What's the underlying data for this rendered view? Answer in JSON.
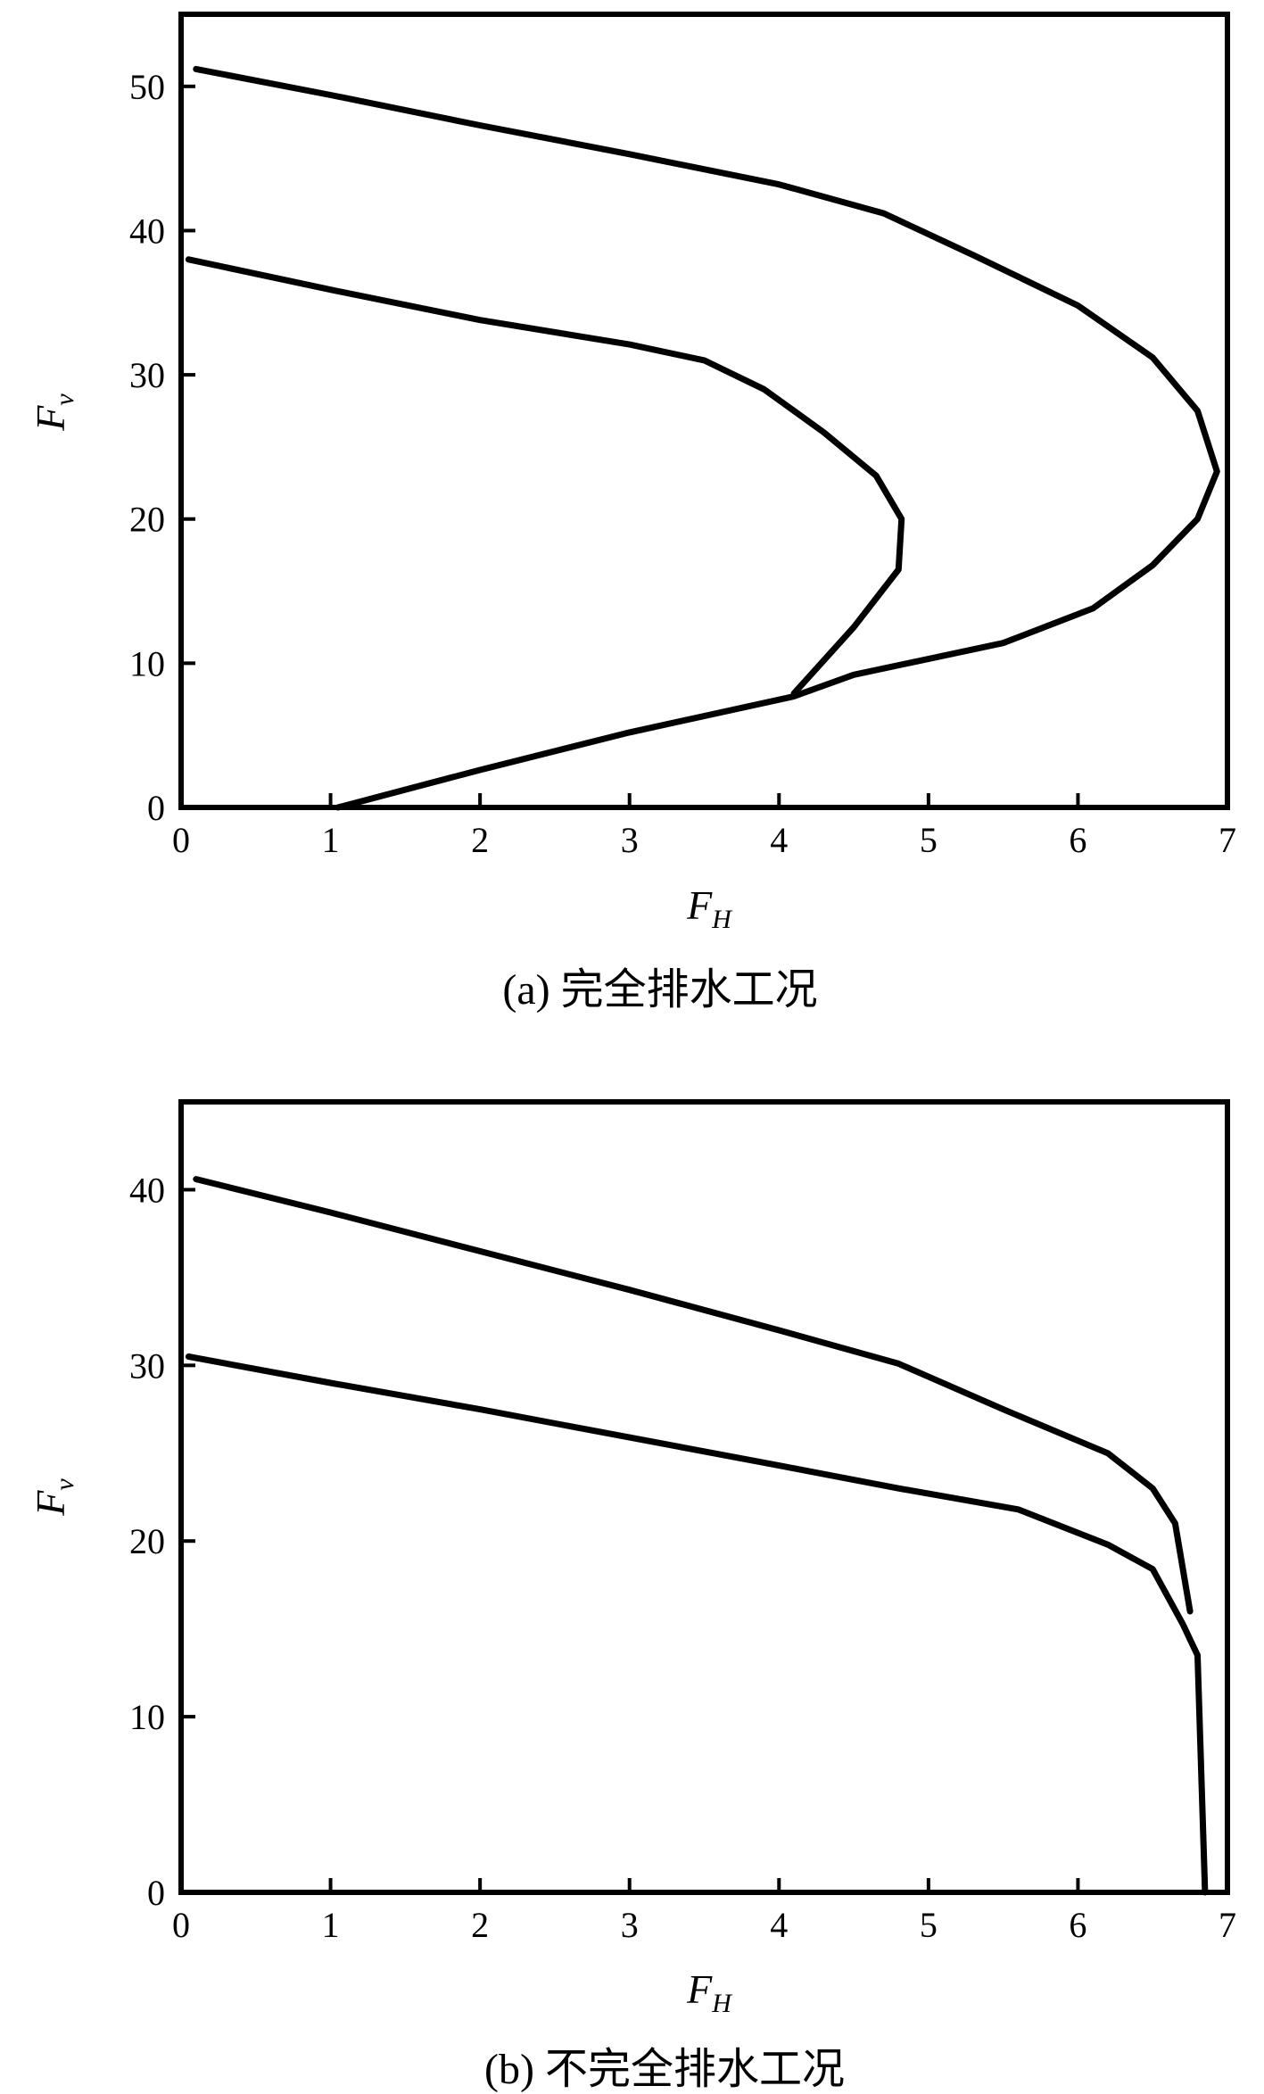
{
  "chart_data": [
    {
      "type": "line",
      "panel": "a",
      "caption": "(a) 完全排水工况",
      "xlabel_main": "F",
      "xlabel_sub": "H",
      "ylabel_main": "F",
      "ylabel_sub": "v",
      "xlim": [
        0,
        7
      ],
      "ylim": [
        0,
        55
      ],
      "xticks": [
        "0",
        "1",
        "2",
        "3",
        "4",
        "5",
        "6",
        "7"
      ],
      "yticks": [
        "0",
        "10",
        "20",
        "30",
        "40",
        "50"
      ],
      "ytick_values": [
        0,
        10,
        20,
        30,
        40,
        50
      ],
      "series": [
        {
          "points": [
            [
              0.1,
              51.2
            ],
            [
              1,
              49.4
            ],
            [
              2,
              47.3
            ],
            [
              3,
              45.3
            ],
            [
              4,
              43.2
            ],
            [
              4.7,
              41.2
            ],
            [
              5.3,
              38.3
            ],
            [
              6,
              34.8
            ],
            [
              6.5,
              31.2
            ],
            [
              6.8,
              27.5
            ],
            [
              6.93,
              23.3
            ],
            [
              6.8,
              20
            ],
            [
              6.5,
              16.8
            ],
            [
              6.1,
              13.8
            ],
            [
              5.5,
              11.4
            ],
            [
              4.5,
              9.2
            ],
            [
              4.1,
              7.7
            ],
            [
              3,
              5.2
            ],
            [
              2,
              2.6
            ],
            [
              1.05,
              0
            ]
          ]
        },
        {
          "points": [
            [
              0.05,
              38
            ],
            [
              1,
              35.9
            ],
            [
              2,
              33.8
            ],
            [
              3,
              32.1
            ],
            [
              3.5,
              31
            ],
            [
              3.9,
              29
            ],
            [
              4.3,
              26
            ],
            [
              4.65,
              23
            ],
            [
              4.82,
              20
            ],
            [
              4.8,
              16.5
            ],
            [
              4.5,
              12.5
            ],
            [
              4.1,
              7.9
            ]
          ]
        }
      ]
    },
    {
      "type": "line",
      "panel": "b",
      "caption": "(b) 不完全排水工况",
      "xlabel_main": "F",
      "xlabel_sub": "H",
      "ylabel_main": "F",
      "ylabel_sub": "v",
      "xlim": [
        0,
        7
      ],
      "ylim": [
        0,
        45
      ],
      "xticks": [
        "0",
        "1",
        "2",
        "3",
        "4",
        "5",
        "6",
        "7"
      ],
      "yticks": [
        "0",
        "10",
        "20",
        "30",
        "40"
      ],
      "ytick_values": [
        0,
        10,
        20,
        30,
        40
      ],
      "series": [
        {
          "points": [
            [
              0.1,
              40.6
            ],
            [
              1,
              38.7
            ],
            [
              2,
              36.5
            ],
            [
              3,
              34.3
            ],
            [
              4,
              32
            ],
            [
              4.8,
              30.1
            ],
            [
              5.5,
              27.5
            ],
            [
              6.2,
              25
            ],
            [
              6.5,
              23
            ],
            [
              6.65,
              21
            ],
            [
              6.75,
              16
            ]
          ]
        },
        {
          "points": [
            [
              0.05,
              30.5
            ],
            [
              1,
              29
            ],
            [
              2,
              27.5
            ],
            [
              3,
              25.9
            ],
            [
              4,
              24.3
            ],
            [
              4.8,
              23
            ],
            [
              5.6,
              21.8
            ],
            [
              6.2,
              19.8
            ],
            [
              6.5,
              18.4
            ],
            [
              6.7,
              15.3
            ],
            [
              6.8,
              13.5
            ],
            [
              6.85,
              0
            ]
          ]
        }
      ]
    }
  ]
}
